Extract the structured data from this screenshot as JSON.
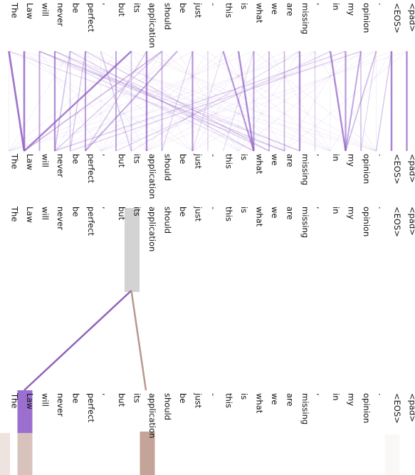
{
  "tokens": [
    "The",
    "Law",
    "will",
    "never",
    "be",
    "perfect",
    ",",
    "but",
    "its",
    "application",
    "should",
    "be",
    "just",
    "-",
    "this",
    "is",
    "what",
    "we",
    "are",
    "missing",
    ",",
    "in",
    "my",
    "opinion",
    ".",
    "<EOS>",
    "<pad>"
  ],
  "colors": {
    "attention": "#8e5cc4",
    "selected_token_bg": "#d3d3d3",
    "focus_law_bg": "#9b6fd0",
    "focus_application_bg": "#c4a499",
    "edge_to_law": "#9064b8",
    "edge_to_application": "#b89790",
    "context_bar": "#d7c3bc"
  },
  "top_panel": {
    "attention_links": [
      {
        "from": "The",
        "to": "Law",
        "weight": 0.85
      },
      {
        "from": "Law",
        "to": "Law",
        "weight": 0.8
      },
      {
        "from": "will",
        "to": "will",
        "weight": 0.5
      },
      {
        "from": "will",
        "to": "missing",
        "weight": 0.15
      },
      {
        "from": "will",
        "to": "what",
        "weight": 0.12
      },
      {
        "from": "never",
        "to": "never",
        "weight": 0.65
      },
      {
        "from": "never",
        "to": "missing",
        "weight": 0.12
      },
      {
        "from": "be",
        "to": "never",
        "weight": 0.3
      },
      {
        "from": "be",
        "to": "be",
        "weight": 0.25
      },
      {
        "from": "perfect",
        "to": "perfect",
        "weight": 0.55
      },
      {
        "from": "perfect",
        "to": "be",
        "weight": 0.25
      },
      {
        "from": ",",
        "to": "its",
        "weight": 0.25
      },
      {
        "from": "but",
        "to": "but",
        "weight": 0.5
      },
      {
        "from": "its",
        "to": "Law",
        "weight": 0.75
      },
      {
        "from": "its",
        "to": "its",
        "weight": 0.3
      },
      {
        "from": "application",
        "to": "application",
        "weight": 0.7
      },
      {
        "from": "should",
        "to": "Law",
        "weight": 0.35
      },
      {
        "from": "should",
        "to": "should",
        "weight": 0.4
      },
      {
        "from": "be",
        "to": "perfect",
        "weight": 0.45
      },
      {
        "from": "just",
        "to": "just",
        "weight": 0.6
      },
      {
        "from": "-",
        "to": "-",
        "weight": 0.2
      },
      {
        "from": "this",
        "to": "what",
        "weight": 0.6
      },
      {
        "from": "is",
        "to": "what",
        "weight": 0.7
      },
      {
        "from": "what",
        "to": "what",
        "weight": 0.55
      },
      {
        "from": "we",
        "to": "we",
        "weight": 0.45
      },
      {
        "from": "are",
        "to": "are",
        "weight": 0.35
      },
      {
        "from": "missing",
        "to": "missing",
        "weight": 0.7
      },
      {
        "from": ",",
        "to": ",",
        "weight": 0.2
      },
      {
        "from": "in",
        "to": "my",
        "weight": 0.7
      },
      {
        "from": "my",
        "to": "my",
        "weight": 0.6
      },
      {
        "from": "opinion",
        "to": "my",
        "weight": 0.5
      },
      {
        "from": ".",
        "to": "my",
        "weight": 0.35
      },
      {
        "from": "<EOS>",
        "to": "<EOS>",
        "weight": 0.75
      },
      {
        "from": "<EOS>",
        "to": ".",
        "weight": 0.25
      },
      {
        "from": "<pad>",
        "to": "<pad>",
        "weight": 0.7
      },
      {
        "from": "never",
        "to": "we",
        "weight": 0.2
      },
      {
        "from": "be",
        "to": "what",
        "weight": 0.2
      },
      {
        "from": "perfect",
        "to": "we",
        "weight": 0.2
      },
      {
        "from": "will",
        "to": "are",
        "weight": 0.18
      },
      {
        "from": "The",
        "to": "are",
        "weight": 0.12
      },
      {
        "from": "application",
        "to": "perfect",
        "weight": 0.25
      },
      {
        "from": "should",
        "to": "never",
        "weight": 0.2
      },
      {
        "from": "my",
        "to": "never",
        "weight": 0.2
      },
      {
        "from": "opinion",
        "to": "be",
        "weight": 0.18
      },
      {
        "from": "in",
        "to": "but",
        "weight": 0.15
      },
      {
        "from": "missing",
        "to": "its",
        "weight": 0.12
      },
      {
        "from": "just",
        "to": "should",
        "weight": 0.15
      },
      {
        "from": "this",
        "to": "just",
        "weight": 0.12
      },
      {
        "from": "what",
        "to": "this",
        "weight": 0.12
      },
      {
        "from": ".",
        "to": "opinion",
        "weight": 0.15
      },
      {
        "from": "opinion",
        "to": "opinion",
        "weight": 0.3
      }
    ]
  },
  "bottom_panel": {
    "selected_token": "its",
    "focus_tokens": [
      "Law",
      "application"
    ],
    "edges": [
      {
        "from": "its",
        "to": "Law"
      },
      {
        "from": "its",
        "to": "application"
      }
    ]
  }
}
